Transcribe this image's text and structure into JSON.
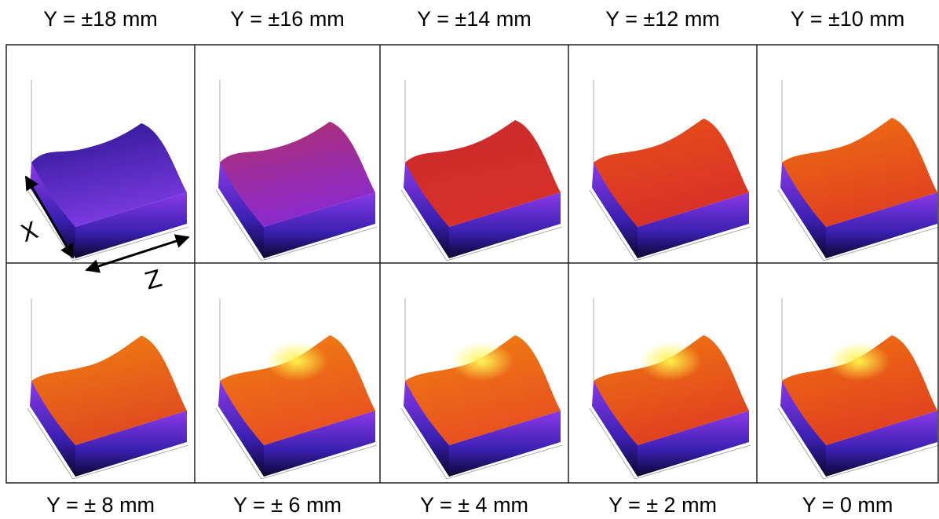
{
  "top_labels": [
    "Y = ±18 mm",
    "Y = ±16 mm",
    "Y = ±14 mm",
    "Y = ±12 mm",
    "Y = ±10 mm"
  ],
  "bottom_labels": [
    "Y = ± 8 mm",
    "Y = ± 6 mm",
    "Y = ± 4 mm",
    "Y = ± 2 mm",
    "Y = 0 mm"
  ],
  "annotations": {
    "x_axis": "X",
    "z_axis": "Z"
  }
}
